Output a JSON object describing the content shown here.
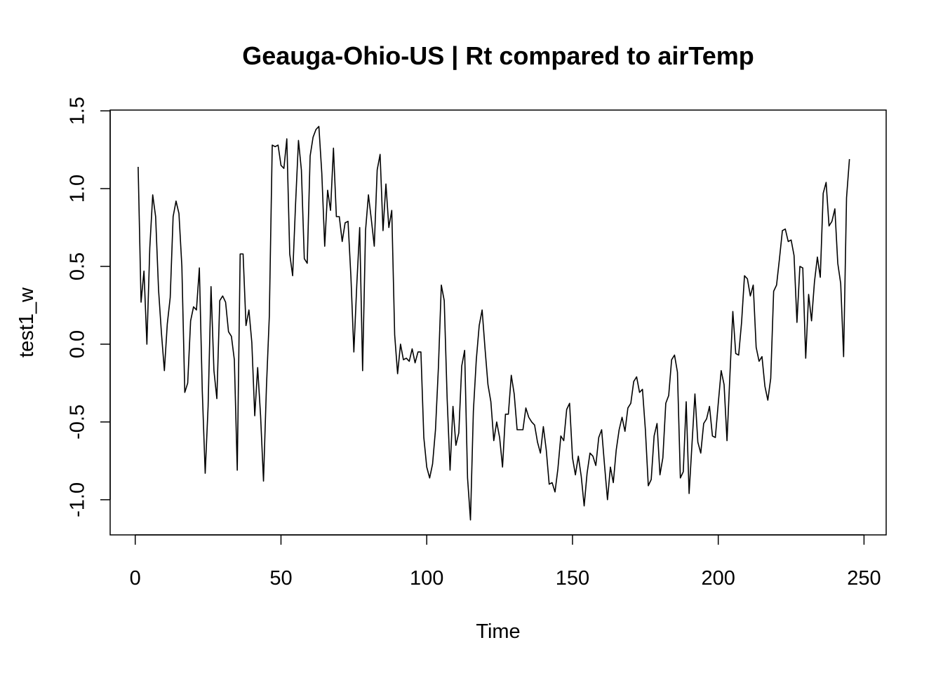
{
  "chart_data": {
    "type": "line",
    "title": "Geauga-Ohio-US | Rt compared to airTemp",
    "xlabel": "Time",
    "ylabel": "test1_w",
    "xlim": [
      -8.6,
      257.6
    ],
    "ylim": [
      -1.226,
      1.505
    ],
    "x_ticks": [
      0,
      50,
      100,
      150,
      200,
      250
    ],
    "y_ticks": [
      -1.0,
      -0.5,
      0.0,
      0.5,
      1.0,
      1.5
    ],
    "x_tick_labels": [
      "0",
      "50",
      "100",
      "150",
      "200",
      "250"
    ],
    "y_tick_labels": [
      "-1.0",
      "-0.5",
      "0.0",
      "0.5",
      "1.0",
      "1.5"
    ],
    "grid": false,
    "series": [
      {
        "color": "#000000",
        "x_start": 1,
        "values": [
          1.14,
          0.27,
          0.47,
          0.0,
          0.62,
          0.96,
          0.82,
          0.35,
          0.07,
          -0.17,
          0.13,
          0.3,
          0.82,
          0.92,
          0.84,
          0.5,
          -0.31,
          -0.25,
          0.15,
          0.24,
          0.22,
          0.49,
          -0.3,
          -0.83,
          -0.4,
          0.37,
          -0.17,
          -0.35,
          0.28,
          0.31,
          0.27,
          0.08,
          0.05,
          -0.1,
          -0.81,
          0.58,
          0.58,
          0.12,
          0.22,
          0.01,
          -0.46,
          -0.15,
          -0.46,
          -0.88,
          -0.28,
          0.18,
          1.28,
          1.27,
          1.28,
          1.15,
          1.13,
          1.32,
          0.58,
          0.44,
          0.9,
          1.31,
          1.12,
          0.55,
          0.52,
          1.21,
          1.33,
          1.38,
          1.4,
          1.1,
          0.63,
          0.99,
          0.86,
          1.26,
          0.82,
          0.82,
          0.66,
          0.78,
          0.79,
          0.43,
          -0.05,
          0.38,
          0.75,
          -0.17,
          0.73,
          0.96,
          0.8,
          0.63,
          1.12,
          1.22,
          0.73,
          1.03,
          0.75,
          0.86,
          0.06,
          -0.19,
          0.0,
          -0.1,
          -0.09,
          -0.11,
          -0.03,
          -0.12,
          -0.05,
          -0.05,
          -0.6,
          -0.79,
          -0.86,
          -0.77,
          -0.55,
          -0.15,
          0.38,
          0.28,
          -0.35,
          -0.81,
          -0.4,
          -0.65,
          -0.57,
          -0.14,
          -0.04,
          -0.86,
          -1.13,
          -0.43,
          -0.1,
          0.12,
          0.22,
          -0.03,
          -0.26,
          -0.37,
          -0.62,
          -0.5,
          -0.6,
          -0.79,
          -0.45,
          -0.45,
          -0.2,
          -0.32,
          -0.55,
          -0.55,
          -0.55,
          -0.41,
          -0.47,
          -0.5,
          -0.52,
          -0.63,
          -0.7,
          -0.53,
          -0.68,
          -0.9,
          -0.89,
          -0.95,
          -0.8,
          -0.59,
          -0.62,
          -0.42,
          -0.38,
          -0.73,
          -0.84,
          -0.72,
          -0.85,
          -1.04,
          -0.83,
          -0.7,
          -0.72,
          -0.78,
          -0.6,
          -0.55,
          -0.78,
          -1.0,
          -0.79,
          -0.89,
          -0.68,
          -0.55,
          -0.47,
          -0.56,
          -0.41,
          -0.38,
          -0.24,
          -0.21,
          -0.31,
          -0.29,
          -0.55,
          -0.91,
          -0.87,
          -0.59,
          -0.51,
          -0.84,
          -0.73,
          -0.38,
          -0.33,
          -0.1,
          -0.07,
          -0.18,
          -0.86,
          -0.82,
          -0.37,
          -0.96,
          -0.64,
          -0.32,
          -0.63,
          -0.7,
          -0.51,
          -0.48,
          -0.4,
          -0.59,
          -0.6,
          -0.38,
          -0.17,
          -0.26,
          -0.62,
          -0.2,
          0.21,
          -0.06,
          -0.07,
          0.14,
          0.44,
          0.42,
          0.31,
          0.38,
          -0.02,
          -0.11,
          -0.08,
          -0.27,
          -0.36,
          -0.22,
          0.34,
          0.38,
          0.55,
          0.73,
          0.74,
          0.66,
          0.67,
          0.57,
          0.14,
          0.5,
          0.49,
          -0.09,
          0.32,
          0.15,
          0.4,
          0.56,
          0.43,
          0.97,
          1.04,
          0.76,
          0.79,
          0.87,
          0.52,
          0.39,
          -0.08,
          0.94,
          1.19
        ]
      }
    ]
  }
}
